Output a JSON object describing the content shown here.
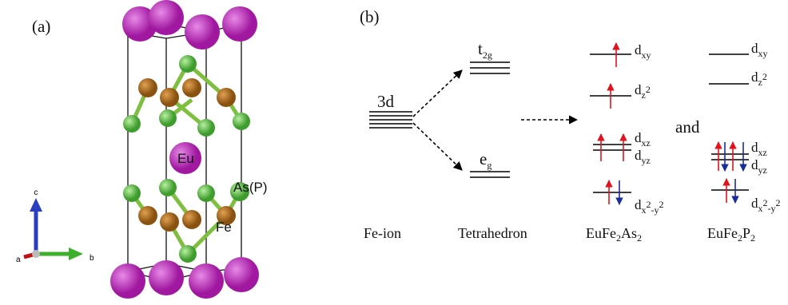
{
  "panel_a": {
    "label": "(a)",
    "atoms": {
      "eu": "Eu",
      "as": "As(P)",
      "fe": "Fe"
    },
    "axes": {
      "a": "a",
      "b": "b",
      "c": "c"
    }
  },
  "panel_b": {
    "label": "(b)",
    "fe_ion": {
      "level": {
        "base": "3d"
      },
      "caption": "Fe-ion"
    },
    "tetrahedron": {
      "t2g": {
        "base": "t",
        "sub": "2g"
      },
      "eg": {
        "base": "e",
        "sub": "g"
      },
      "caption": "Tetrahedron"
    },
    "connector": "and",
    "eufe2as2": {
      "caption": [
        "EuFe",
        "2",
        "As",
        "2"
      ],
      "levels": {
        "dxy": [
          "d",
          "xy"
        ],
        "dz2": [
          "d",
          "z",
          "2"
        ],
        "dxz": [
          "d",
          "xz"
        ],
        "dyz": [
          "d",
          "yz"
        ],
        "dx2y2": [
          "d",
          "x",
          "2",
          "-y",
          "2"
        ]
      }
    },
    "eufe2p2": {
      "caption": [
        "EuFe",
        "2",
        "P",
        "2"
      ],
      "levels": {
        "dxy": [
          "d",
          "xy"
        ],
        "dz2": [
          "d",
          "z",
          "2"
        ],
        "dxz": [
          "d",
          "xz"
        ],
        "dyz": [
          "d",
          "yz"
        ],
        "dx2y2": [
          "d",
          "x",
          "2",
          "-y",
          "2"
        ]
      }
    }
  }
}
